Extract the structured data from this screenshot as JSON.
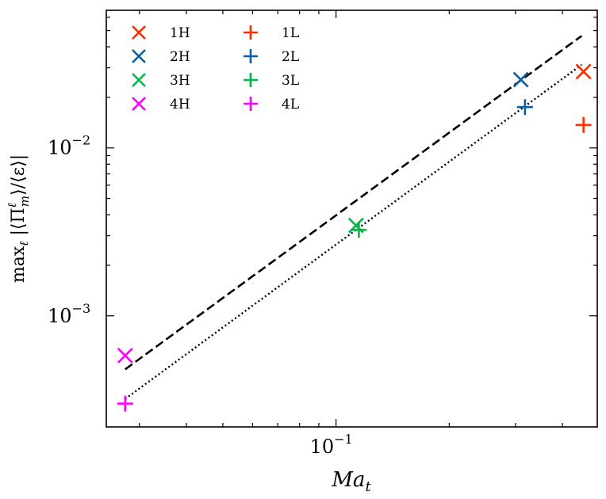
{
  "chart_data": {
    "type": "scatter",
    "title": "",
    "xscale": "log",
    "yscale": "log",
    "xlim": [
      0.0245,
      0.495
    ],
    "ylim": [
      0.000218,
      0.066
    ],
    "xlabel": {
      "base": "Ma",
      "sub": "t"
    },
    "ylabel": "max_ℓ |⟨Π^ℓ_m⟩/⟨ε⟩|",
    "ylabel_parts": {
      "prefix": "max",
      "sub1": "ℓ",
      "mid": " |⟨Π",
      "sup": "ℓ",
      "sub2": "m",
      "suffix": "⟩/⟨ε⟩|"
    },
    "x_major_ticks": [
      {
        "value": 0.1,
        "base": "10",
        "exp": "−1"
      }
    ],
    "y_major_ticks": [
      {
        "value": 0.001,
        "base": "10",
        "exp": "−3"
      },
      {
        "value": 0.01,
        "base": "10",
        "exp": "−2"
      }
    ],
    "legend_position": "upper-left",
    "series": [
      {
        "name": "1H",
        "marker": "x",
        "color": "#ff2c00",
        "x": 0.455,
        "y": 0.0285
      },
      {
        "name": "2H",
        "marker": "x",
        "color": "#0c5da5",
        "x": 0.31,
        "y": 0.0255
      },
      {
        "name": "3H",
        "marker": "x",
        "color": "#00b945",
        "x": 0.113,
        "y": 0.00345
      },
      {
        "name": "4H",
        "marker": "x",
        "color": "#ff00ff",
        "x": 0.0275,
        "y": 0.00058
      },
      {
        "name": "1L",
        "marker": "+",
        "color": "#ff2c00",
        "x": 0.455,
        "y": 0.0137
      },
      {
        "name": "2L",
        "marker": "+",
        "color": "#0c5da5",
        "x": 0.318,
        "y": 0.0175
      },
      {
        "name": "3L",
        "marker": "+",
        "color": "#00b945",
        "x": 0.115,
        "y": 0.00325
      },
      {
        "name": "4L",
        "marker": "+",
        "color": "#ff00ff",
        "x": 0.0275,
        "y": 0.0003
      }
    ],
    "fit_lines": [
      {
        "style": "dashed",
        "color": "#000000",
        "x": [
          0.0275,
          0.45
        ],
        "y": [
          0.00048,
          0.0465
        ]
      },
      {
        "style": "dotted",
        "color": "#000000",
        "x": [
          0.0275,
          0.45
        ],
        "y": [
          0.00032,
          0.0313
        ]
      }
    ]
  }
}
